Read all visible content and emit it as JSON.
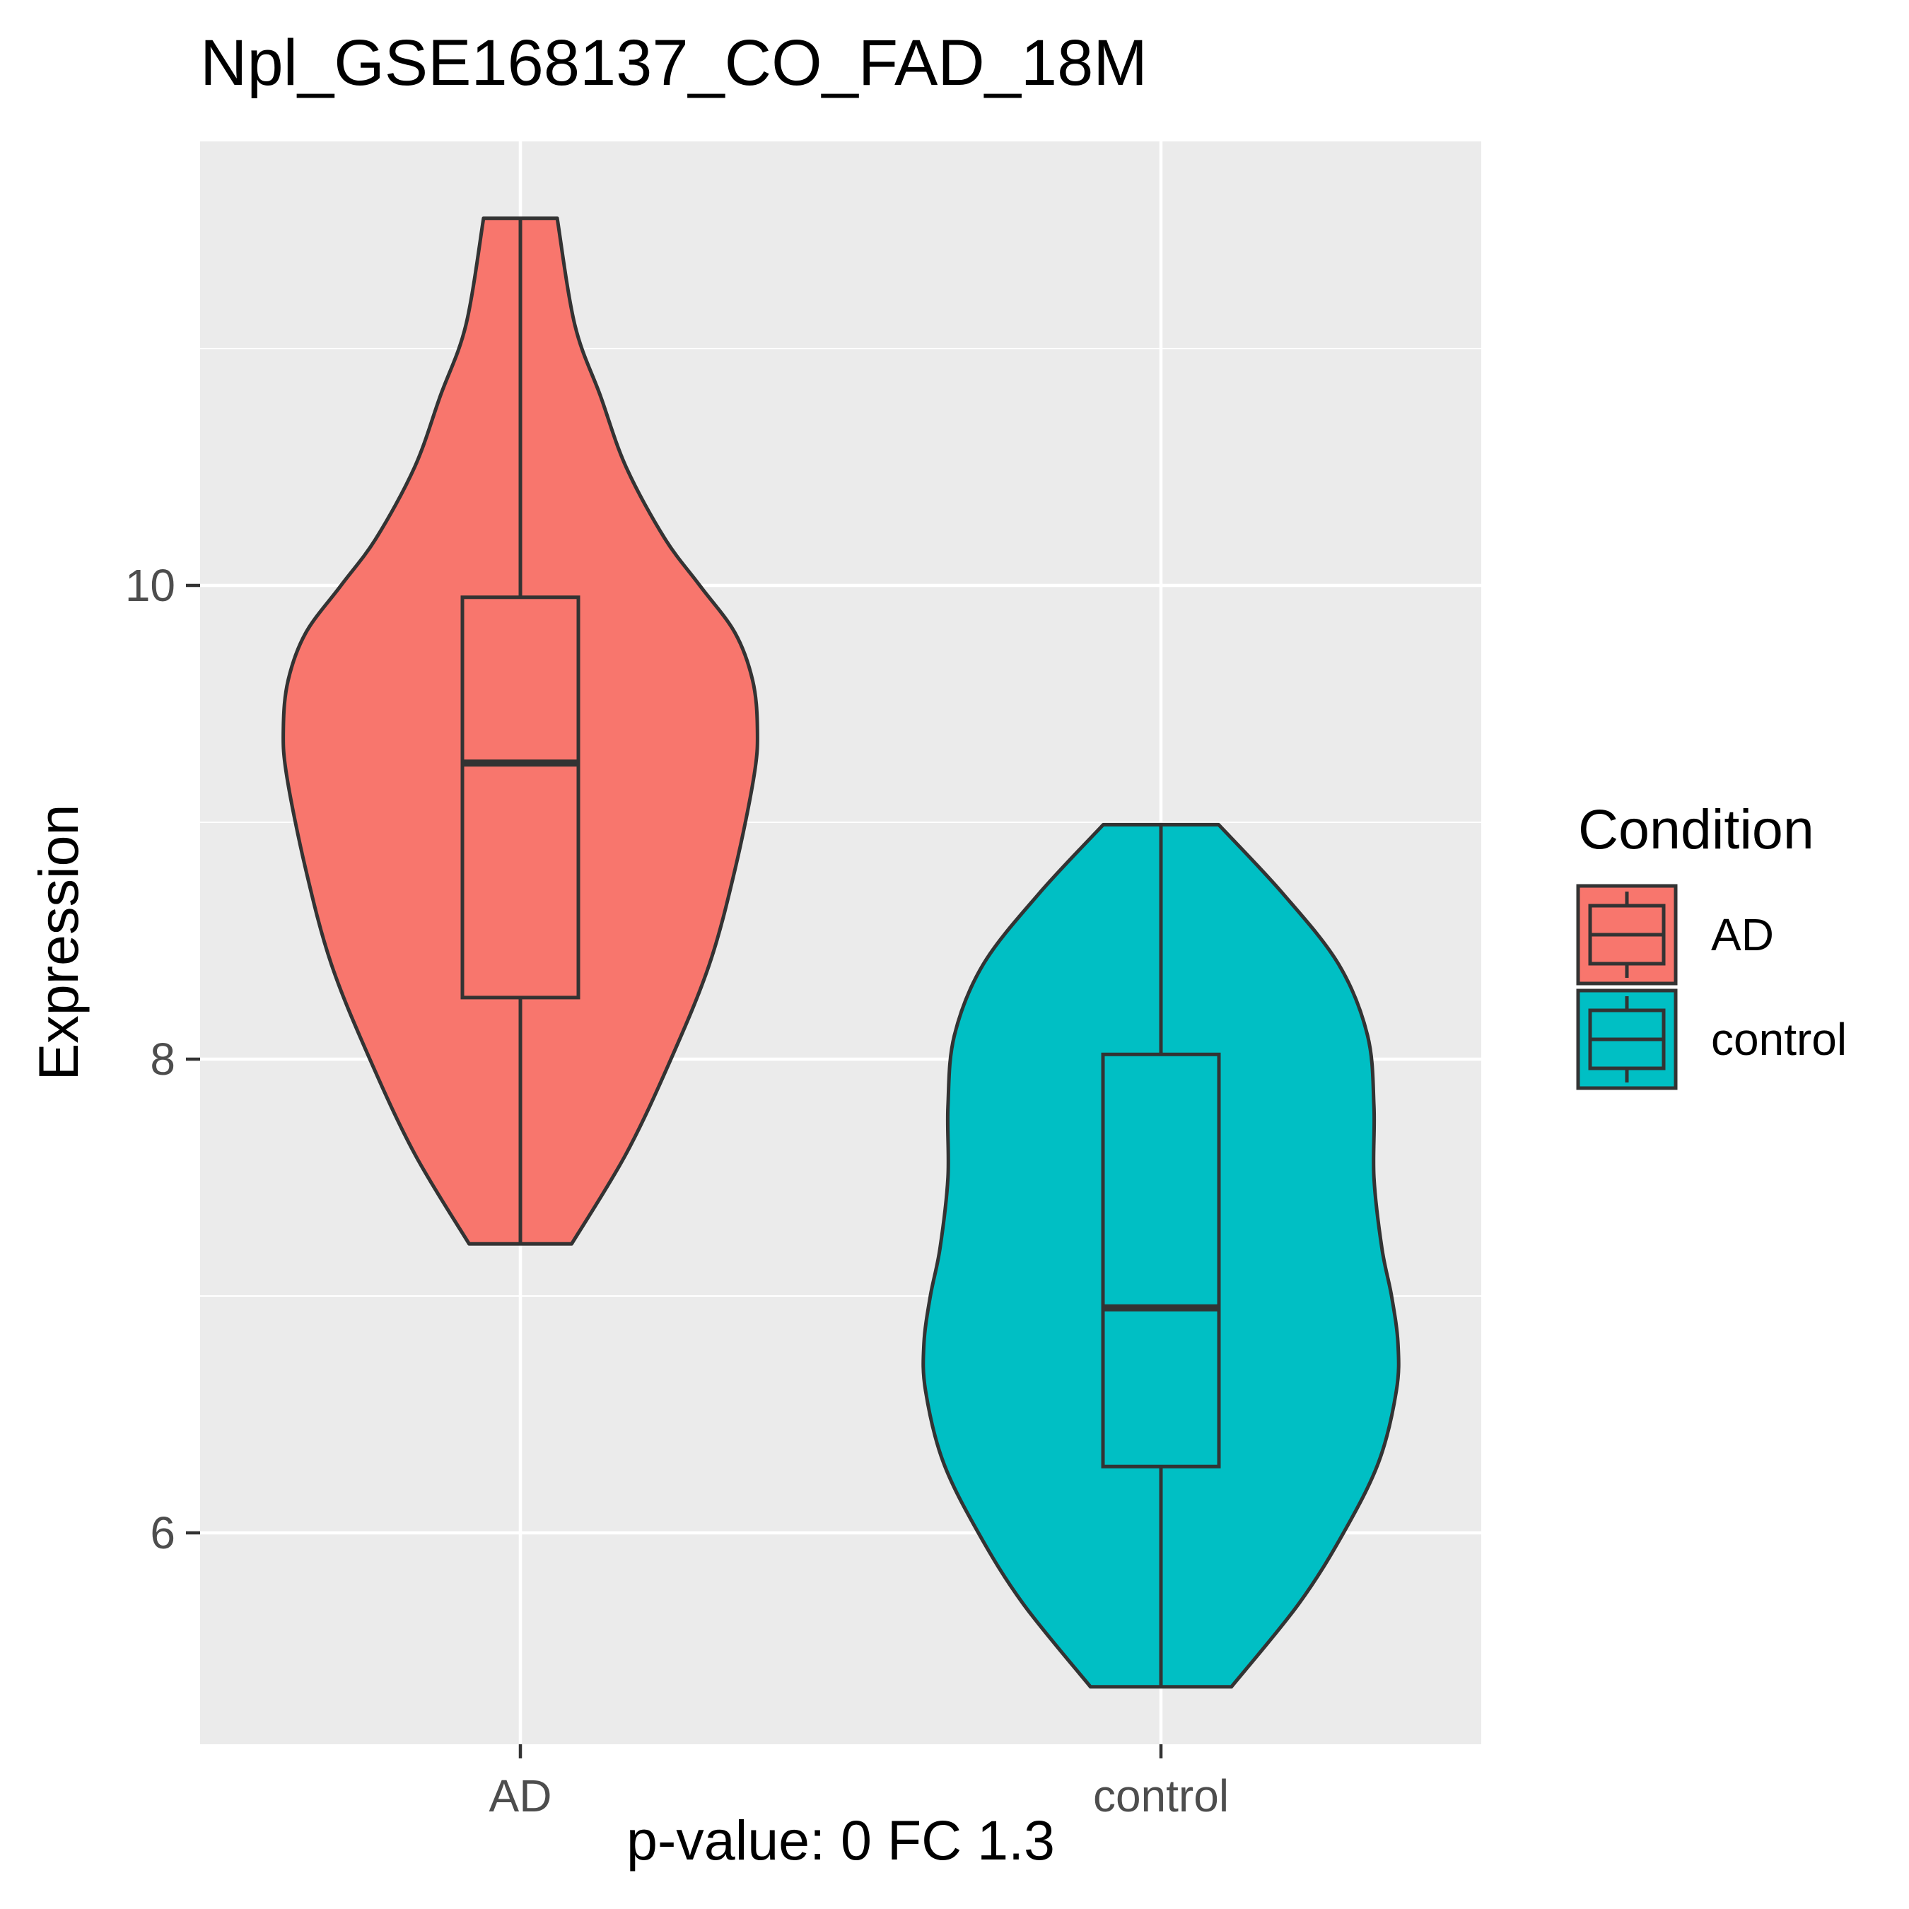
{
  "chart_data": {
    "type": "violin",
    "title": "Npl_GSE168137_CO_FAD_18M",
    "xlabel": "p-value: 0 FC 1.3",
    "ylabel": "Expression",
    "categories": [
      "AD",
      "control"
    ],
    "y_ticks": [
      6,
      8,
      10
    ],
    "ylim": [
      5.1,
      11.9
    ],
    "grid": true,
    "legend": {
      "title": "Condition",
      "position": "right",
      "entries": [
        "AD",
        "control"
      ]
    },
    "colors": {
      "AD": "#F8766D",
      "control": "#00BFC4",
      "panel": "#EBEBEB",
      "grid": "#FFFFFF",
      "outline": "#333333"
    },
    "series": [
      {
        "name": "AD",
        "box": {
          "min": 7.22,
          "q1": 8.26,
          "median": 9.25,
          "q3": 9.95,
          "max": 11.55
        },
        "violin": {
          "y": [
            7.22,
            7.6,
            8.0,
            8.4,
            8.8,
            9.2,
            9.4,
            9.6,
            9.8,
            10.0,
            10.2,
            10.5,
            10.8,
            11.1,
            11.55
          ],
          "half_width": [
            0.16,
            0.33,
            0.47,
            0.59,
            0.67,
            0.73,
            0.74,
            0.725,
            0.67,
            0.56,
            0.45,
            0.33,
            0.25,
            0.17,
            0.115
          ]
        }
      },
      {
        "name": "control",
        "box": {
          "min": 5.35,
          "q1": 6.28,
          "median": 6.95,
          "q3": 8.02,
          "max": 8.99
        },
        "violin": {
          "y": [
            5.35,
            5.7,
            6.0,
            6.3,
            6.6,
            6.8,
            7.0,
            7.2,
            7.5,
            7.8,
            8.1,
            8.4,
            8.7,
            8.99
          ],
          "half_width": [
            0.22,
            0.43,
            0.57,
            0.68,
            0.735,
            0.74,
            0.72,
            0.69,
            0.665,
            0.665,
            0.645,
            0.555,
            0.38,
            0.18
          ]
        }
      }
    ]
  }
}
